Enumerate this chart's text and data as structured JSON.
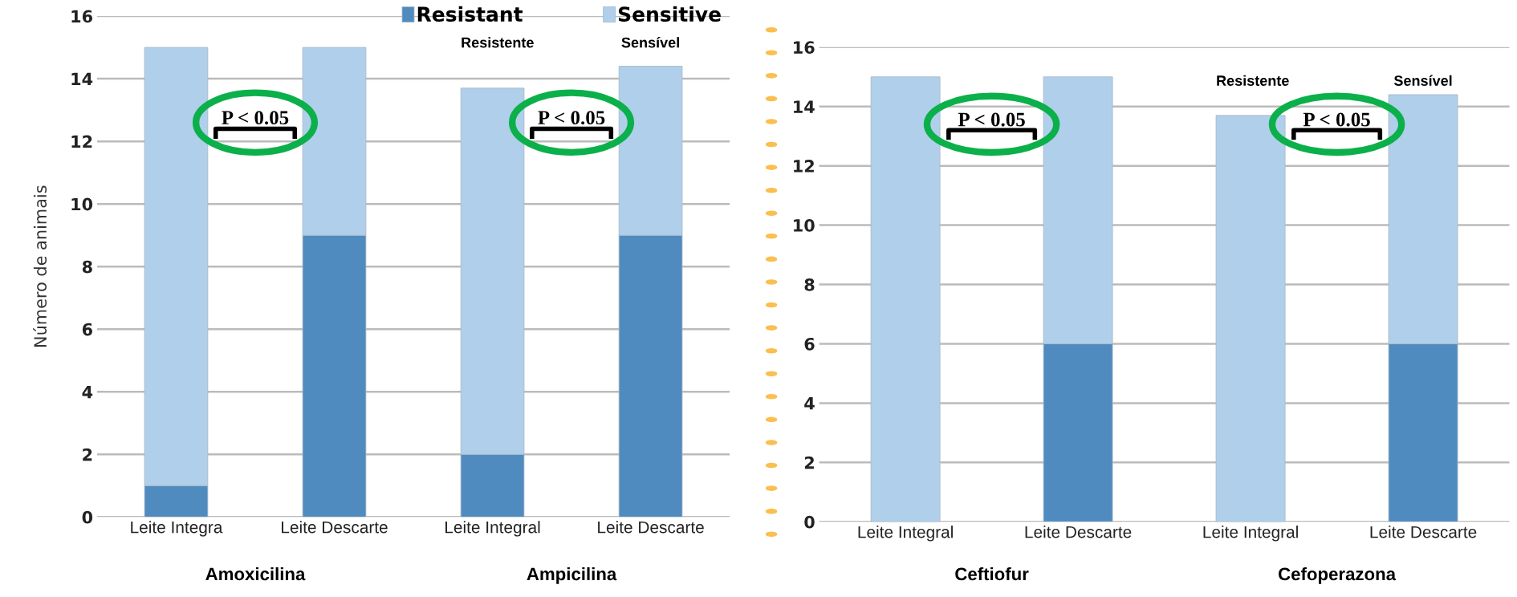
{
  "chart_data": [
    {
      "type": "bar",
      "stacked": true,
      "ylabel": "Número de animais",
      "categories": [
        "Leite Integra",
        "Leite Descarte",
        "Leite Integral",
        "Leite Descarte"
      ],
      "series": [
        {
          "name": "Resistant",
          "color": "#4f8bbf",
          "values": [
            1,
            9,
            2,
            9
          ]
        },
        {
          "name": "Sensitive",
          "color": "#b0cfea",
          "values": [
            14,
            6,
            11.7,
            5.4
          ]
        }
      ],
      "ylim": [
        0,
        16
      ],
      "yticks": [
        0,
        2,
        4,
        6,
        8,
        10,
        12,
        14,
        16
      ],
      "grid": "y",
      "legend": "top right",
      "annotations": [
        "Resistente",
        "Sensível",
        "P < 0.05",
        "P < 0.05",
        "Amoxicilina",
        "Ampicilina"
      ]
    },
    {
      "type": "bar",
      "stacked": true,
      "categories": [
        "Leite Integral",
        "Leite Descarte",
        "Leite Integral",
        "Leite Descarte"
      ],
      "series": [
        {
          "color": "#4f8bbf",
          "values": [
            0,
            6,
            0,
            6
          ]
        },
        {
          "color": "#b0cfea",
          "values": [
            15,
            9,
            13.7,
            8.4
          ]
        }
      ],
      "ylim": [
        0,
        16
      ],
      "yticks": [
        0,
        2,
        4,
        6,
        8,
        10,
        12,
        14,
        16
      ],
      "grid": "y",
      "annotations": [
        "Resistente",
        "Sensível",
        "P < 0.05",
        "P < 0.05",
        "Ceftiofur",
        "Cefoperazona"
      ]
    }
  ]
}
